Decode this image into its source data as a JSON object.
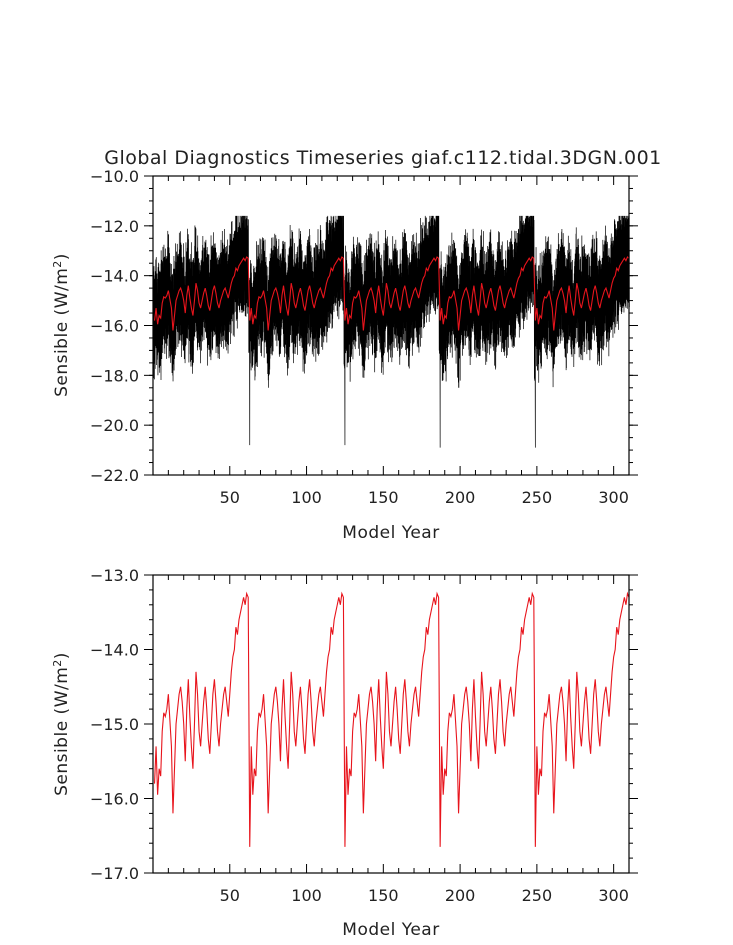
{
  "title": "Global Diagnostics Timeseries giaf.c112.tidal.3DGN.001",
  "colors": {
    "monthly": "#000000",
    "annual": "#e8141c",
    "axis": "#000000"
  },
  "chart_data": [
    {
      "type": "line",
      "title": "Global Diagnostics Timeseries giaf.c112.tidal.3DGN.001",
      "xlabel": "Model Year",
      "ylabel": "Sensible (W/m²)",
      "ylabel_base": "Sensible (W/m",
      "ylabel_exp": "2",
      "ylabel_close": ")",
      "xlim": [
        0,
        310
      ],
      "ylim": [
        -22.0,
        -10.0
      ],
      "xticks": [
        50,
        100,
        150,
        200,
        250,
        300
      ],
      "xtick_labels": [
        "50",
        "100",
        "150",
        "200",
        "250",
        "300"
      ],
      "yticks": [
        -22.0,
        -20.0,
        -18.0,
        -16.0,
        -14.0,
        -12.0,
        -10.0
      ],
      "ytick_labels": [
        "−22.0",
        "−20.0",
        "−18.0",
        "−16.0",
        "−14.0",
        "−12.0",
        "−10.0"
      ],
      "grid": false,
      "series": [
        {
          "color": "#000000",
          "cycle_length": 62,
          "num_cycles": 5,
          "points_per_year": 12,
          "monthly_range": [
            -18.5,
            -11.6
          ],
          "minimum_spikes": [
            {
              "x": 63,
              "y": -20.8
            },
            {
              "x": 125,
              "y": -20.8
            },
            {
              "x": 187,
              "y": -20.9
            },
            {
              "x": 249,
              "y": -20.9
            }
          ]
        },
        {
          "color": "#e8141c",
          "x_start": 1,
          "x_step": 1,
          "cycle_length": 62,
          "num_cycles": 5,
          "cycle_values": [
            -15.8,
            -15.3,
            -15.95,
            -15.6,
            -15.7,
            -15.1,
            -14.85,
            -14.9,
            -14.8,
            -14.6,
            -14.95,
            -15.3,
            -16.2,
            -15.6,
            -15.0,
            -14.8,
            -14.6,
            -14.5,
            -14.7,
            -15.0,
            -15.5,
            -14.8,
            -14.4,
            -14.9,
            -15.3,
            -15.6,
            -15.0,
            -14.3,
            -14.6,
            -15.1,
            -15.3,
            -15.0,
            -14.7,
            -14.5,
            -14.8,
            -15.2,
            -15.4,
            -15.0,
            -14.6,
            -14.4,
            -14.7,
            -15.1,
            -15.3,
            -15.0,
            -14.8,
            -14.6,
            -14.5,
            -14.7,
            -14.9,
            -14.6,
            -14.3,
            -14.1,
            -14.0,
            -13.7,
            -13.8,
            -13.6,
            -13.5,
            -13.4,
            -13.3,
            -13.4,
            -13.25,
            -13.3
          ]
        }
      ]
    },
    {
      "type": "line",
      "title": "",
      "xlabel": "Model Year",
      "ylabel": "Sensible (W/m²)",
      "ylabel_base": "Sensible (W/m",
      "ylabel_exp": "2",
      "ylabel_close": ")",
      "xlim": [
        0,
        310
      ],
      "ylim": [
        -17.0,
        -13.0
      ],
      "xticks": [
        50,
        100,
        150,
        200,
        250,
        300
      ],
      "xtick_labels": [
        "50",
        "100",
        "150",
        "200",
        "250",
        "300"
      ],
      "yticks": [
        -17.0,
        -16.0,
        -15.0,
        -14.0,
        -13.0
      ],
      "ytick_labels": [
        "−17.0",
        "−16.0",
        "−15.0",
        "−14.0",
        "−13.0"
      ],
      "grid": false,
      "series": [
        {
          "color": "#e8141c",
          "x_start": 1,
          "x_step": 1,
          "cycle_length": 62,
          "num_cycles": 5,
          "cycle_values": [
            -15.8,
            -15.3,
            -15.95,
            -15.6,
            -15.7,
            -15.1,
            -14.85,
            -14.9,
            -14.8,
            -14.6,
            -14.95,
            -15.3,
            -16.2,
            -15.6,
            -15.0,
            -14.8,
            -14.6,
            -14.5,
            -14.7,
            -15.0,
            -15.5,
            -14.8,
            -14.4,
            -14.9,
            -15.3,
            -15.6,
            -15.0,
            -14.3,
            -14.6,
            -15.1,
            -15.3,
            -15.0,
            -14.7,
            -14.5,
            -14.8,
            -15.2,
            -15.4,
            -15.0,
            -14.6,
            -14.4,
            -14.7,
            -15.1,
            -15.3,
            -15.0,
            -14.8,
            -14.6,
            -14.5,
            -14.7,
            -14.9,
            -14.6,
            -14.3,
            -14.1,
            -14.0,
            -13.7,
            -13.8,
            -13.6,
            -13.5,
            -13.4,
            -13.3,
            -13.4,
            -13.25,
            -13.3
          ],
          "cycle_start_drop": -16.65
        }
      ]
    }
  ]
}
